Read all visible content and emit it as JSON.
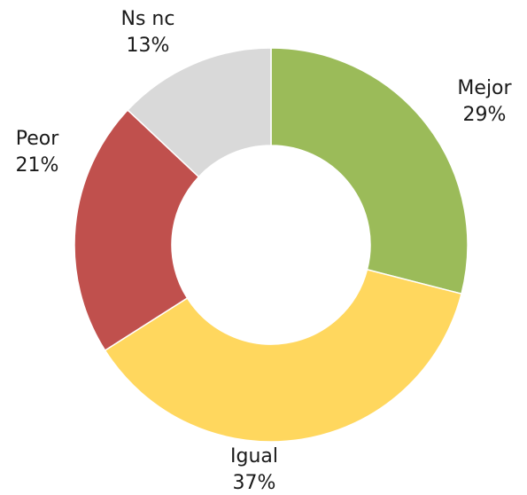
{
  "chart_data": {
    "type": "donut",
    "categories": [
      "Mejor",
      "Igual",
      "Peor",
      "Ns nc"
    ],
    "values": [
      29,
      37,
      21,
      13
    ],
    "value_labels": [
      "29%",
      "37%",
      "21%",
      "13%"
    ],
    "colors": [
      "#9bbb59",
      "#ffd75e",
      "#c0504d",
      "#d9d9d9"
    ]
  }
}
